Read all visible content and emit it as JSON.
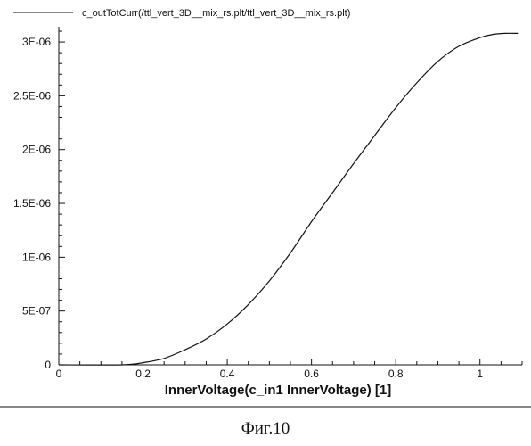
{
  "caption": "Фиг.10",
  "chart_data": {
    "type": "line",
    "title": "",
    "xlabel": "InnerVoltage(c_in1 InnerVoltage) [1]",
    "ylabel": "",
    "xlim": [
      0,
      1.1
    ],
    "ylim": [
      0,
      3.1e-06
    ],
    "x_ticks": [
      0,
      0.2,
      0.4,
      0.6,
      0.8,
      1
    ],
    "x_tick_labels": [
      "0",
      "0.2",
      "0.4",
      "0.6",
      "0.8",
      "1"
    ],
    "y_ticks": [
      0,
      5e-07,
      1e-06,
      1.5e-06,
      2e-06,
      2.5e-06,
      3e-06
    ],
    "y_tick_labels": [
      "0",
      "5E-07",
      "1E-06",
      "1.5E-06",
      "2E-06",
      "2.5E-06",
      "3E-06"
    ],
    "grid": false,
    "legend_position": "top-left",
    "series": [
      {
        "name": "c_outTotCurr(/ttl_vert_3D__mix_rs.plt/ttl_vert_3D__mix_rs.plt)",
        "color": "#111111",
        "x": [
          0.15,
          0.2,
          0.25,
          0.3,
          0.35,
          0.4,
          0.45,
          0.5,
          0.55,
          0.6,
          0.65,
          0.7,
          0.75,
          0.8,
          0.85,
          0.9,
          0.95,
          1.0,
          1.03,
          1.06,
          1.09
        ],
        "y": [
          0,
          2e-08,
          6e-08,
          1.4e-07,
          2.4e-07,
          3.8e-07,
          5.6e-07,
          7.8e-07,
          1.04e-06,
          1.33e-06,
          1.6e-06,
          1.87e-06,
          2.13e-06,
          2.39e-06,
          2.62e-06,
          2.82e-06,
          2.96e-06,
          3.04e-06,
          3.07e-06,
          3.08e-06,
          3.08e-06
        ]
      }
    ]
  }
}
